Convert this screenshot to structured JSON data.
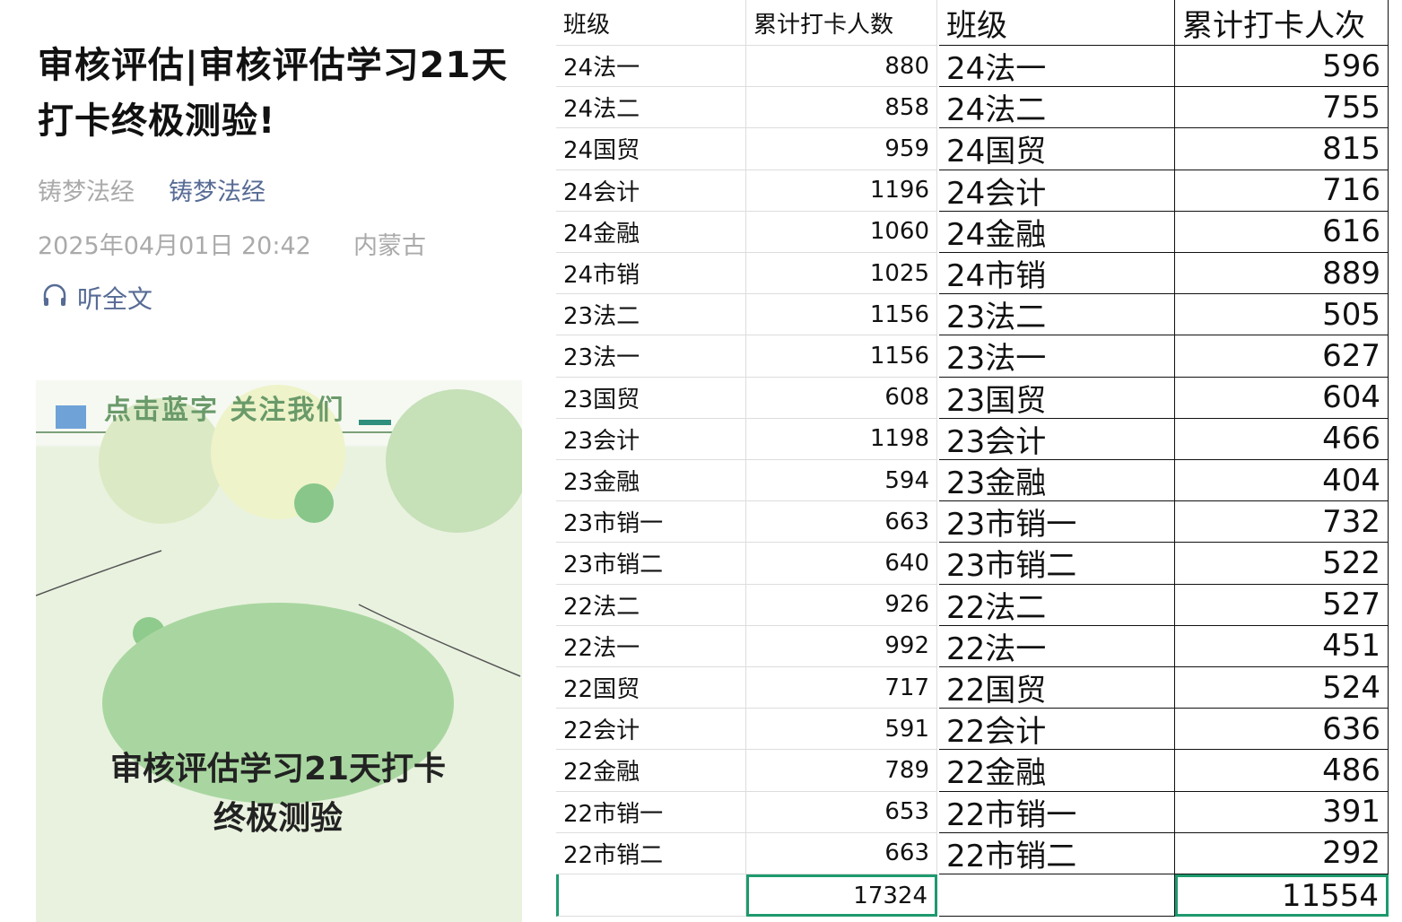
{
  "article": {
    "title": "审核评估|审核评估学习21天打卡终极测验!",
    "author": "铸梦法经",
    "account": "铸梦法经",
    "datetime": "2025年04月01日 20:42",
    "location": "内蒙古",
    "listen": "听全文",
    "banner": "点击蓝字 关注我们",
    "cover_title": [
      "审核评估学习21天打卡",
      "终极测验"
    ]
  },
  "tables": [
    {
      "header": [
        "班级",
        "累计打卡人数"
      ],
      "rows": [
        [
          "24法一",
          880
        ],
        [
          "24法二",
          858
        ],
        [
          "24国贸",
          959
        ],
        [
          "24会计",
          1196
        ],
        [
          "24金融",
          1060
        ],
        [
          "24市销",
          1025
        ],
        [
          "23法二",
          1156
        ],
        [
          "23法一",
          1156
        ],
        [
          "23国贸",
          608
        ],
        [
          "23会计",
          1198
        ],
        [
          "23金融",
          594
        ],
        [
          "23市销一",
          663
        ],
        [
          "23市销二",
          640
        ],
        [
          "22法二",
          926
        ],
        [
          "22法一",
          992
        ],
        [
          "22国贸",
          717
        ],
        [
          "22会计",
          591
        ],
        [
          "22金融",
          789
        ],
        [
          "22市销一",
          653
        ],
        [
          "22市销二",
          663
        ]
      ],
      "total": 17324
    },
    {
      "header": [
        "班级",
        "累计打卡人次"
      ],
      "rows": [
        [
          "24法一",
          596
        ],
        [
          "24法二",
          755
        ],
        [
          "24国贸",
          815
        ],
        [
          "24会计",
          716
        ],
        [
          "24金融",
          616
        ],
        [
          "24市销",
          889
        ],
        [
          "23法二",
          505
        ],
        [
          "23法一",
          627
        ],
        [
          "23国贸",
          604
        ],
        [
          "23会计",
          466
        ],
        [
          "23金融",
          404
        ],
        [
          "23市销一",
          732
        ],
        [
          "23市销二",
          522
        ],
        [
          "22法二",
          527
        ],
        [
          "22法一",
          451
        ],
        [
          "22国贸",
          524
        ],
        [
          "22会计",
          636
        ],
        [
          "22金融",
          486
        ],
        [
          "22市销一",
          391
        ],
        [
          "22市销二",
          292
        ]
      ],
      "total": 11554
    }
  ]
}
